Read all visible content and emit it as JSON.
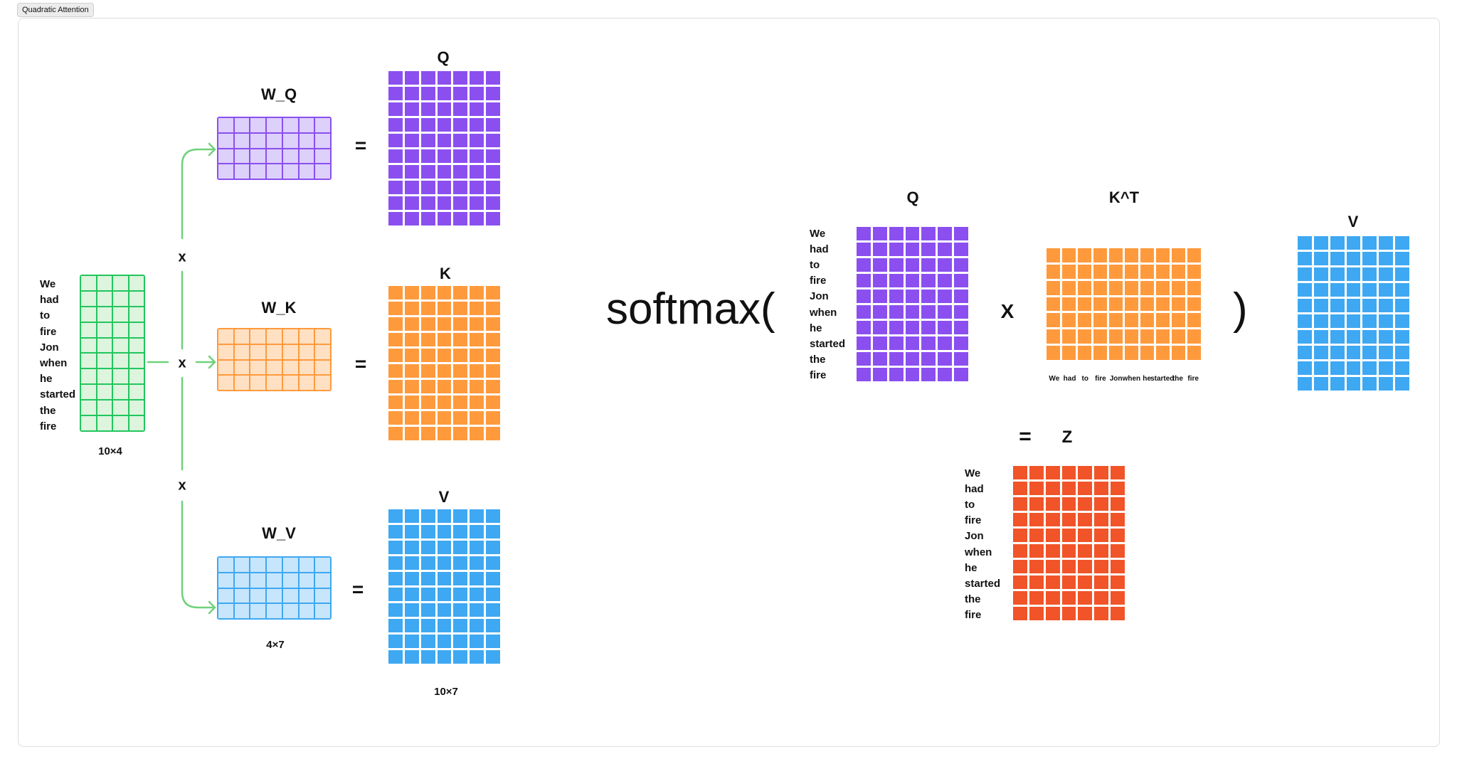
{
  "tab": {
    "title": "Quadratic Attention"
  },
  "colors": {
    "green": "#22c55e",
    "green_fill": "#dcf5dc",
    "purple": "#8b4ff0",
    "purple_fill": "#ddd0fa",
    "orange": "#ff9a3c",
    "orange_fill": "#ffe0c2",
    "blue": "#3ea8f2",
    "blue_fill": "#c7e6fb",
    "red": "#f05428"
  },
  "tokens": [
    "We",
    "had",
    "to",
    "fire",
    "Jon",
    "when",
    "he",
    "started",
    "the",
    "fire"
  ],
  "inputs": {
    "dims": "10×4"
  },
  "weights": {
    "wq": "W_Q",
    "wk": "W_K",
    "wv": "W_V",
    "dims": "4×7"
  },
  "outputs": {
    "q": "Q",
    "k": "K",
    "v": "V",
    "dims": "10×7"
  },
  "operators": {
    "times": "x",
    "equals": "="
  },
  "attention": {
    "softmax_open": "softmax(",
    "close_paren": ")",
    "q": "Q",
    "kt": "K^T",
    "v": "V",
    "times": "X",
    "equals": "=",
    "z": "Z"
  }
}
